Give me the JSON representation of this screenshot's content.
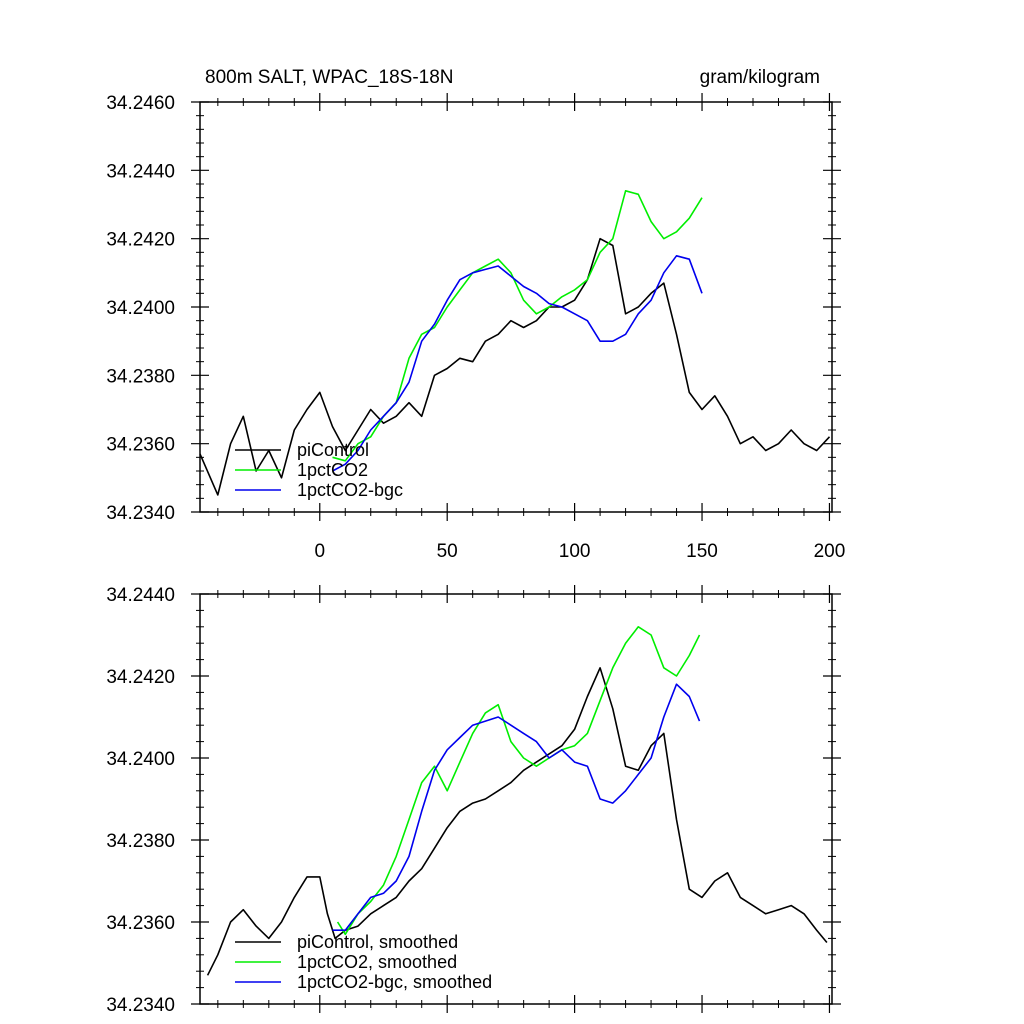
{
  "title_left": "800m SALT, WPAC_18S-18N",
  "title_right": "gram/kilogram",
  "chart_data": [
    {
      "type": "line",
      "title": "800m SALT, WPAC_18S-18N",
      "units": "gram/kilogram",
      "xlim": [
        -47,
        201
      ],
      "ylim": [
        34.234,
        34.246
      ],
      "x_ticks": [
        0,
        50,
        100,
        150,
        200
      ],
      "x_tick_labels": [
        "0",
        "50",
        "100",
        "150",
        "200"
      ],
      "y_ticks": [
        34.234,
        34.236,
        34.238,
        34.24,
        34.242,
        34.244,
        34.246
      ],
      "y_tick_labels": [
        "34.2340",
        "34.2360",
        "34.2380",
        "34.2400",
        "34.2420",
        "34.2440",
        "34.2460"
      ],
      "legend_position": "bottom-left",
      "series": [
        {
          "name": "piControl",
          "color": "#000000",
          "x": [
            -47,
            -40,
            -35,
            -30,
            -25,
            -20,
            -15,
            -10,
            -5,
            0,
            5,
            10,
            15,
            20,
            25,
            30,
            35,
            40,
            45,
            50,
            55,
            60,
            65,
            70,
            75,
            80,
            85,
            90,
            95,
            100,
            105,
            110,
            115,
            120,
            125,
            130,
            135,
            140,
            145,
            150,
            155,
            160,
            165,
            170,
            175,
            180,
            185,
            190,
            195,
            200
          ],
          "y": [
            34.2357,
            34.2345,
            34.236,
            34.2368,
            34.2352,
            34.2358,
            34.235,
            34.2364,
            34.237,
            34.2375,
            34.2365,
            34.2358,
            34.2364,
            34.237,
            34.2366,
            34.2368,
            34.2372,
            34.2368,
            34.238,
            34.2382,
            34.2385,
            34.2384,
            34.239,
            34.2392,
            34.2396,
            34.2394,
            34.2396,
            34.24,
            34.24,
            34.2402,
            34.2408,
            34.242,
            34.2418,
            34.2398,
            34.24,
            34.2404,
            34.2407,
            34.2392,
            34.2375,
            34.237,
            34.2374,
            34.2368,
            34.236,
            34.2362,
            34.2358,
            34.236,
            34.2364,
            34.236,
            34.2358,
            34.2362
          ]
        },
        {
          "name": "1pctCO2",
          "color": "#00ee00",
          "x": [
            5,
            10,
            15,
            20,
            25,
            30,
            35,
            40,
            45,
            50,
            55,
            60,
            65,
            70,
            75,
            80,
            85,
            90,
            95,
            100,
            105,
            110,
            115,
            120,
            125,
            130,
            135,
            140,
            145,
            150
          ],
          "y": [
            34.2356,
            34.2355,
            34.236,
            34.2362,
            34.2368,
            34.2372,
            34.2385,
            34.2392,
            34.2394,
            34.24,
            34.2405,
            34.241,
            34.2412,
            34.2414,
            34.241,
            34.2402,
            34.2398,
            34.24,
            34.2403,
            34.2405,
            34.2408,
            34.2416,
            34.242,
            34.2434,
            34.2433,
            34.2425,
            34.242,
            34.2422,
            34.2426,
            34.2432
          ]
        },
        {
          "name": "1pctCO2-bgc",
          "color": "#0000ee",
          "x": [
            5,
            10,
            15,
            20,
            25,
            30,
            35,
            40,
            45,
            50,
            55,
            60,
            65,
            70,
            75,
            80,
            85,
            90,
            95,
            100,
            105,
            110,
            115,
            120,
            125,
            130,
            135,
            140,
            145,
            150
          ],
          "y": [
            34.2352,
            34.2354,
            34.2358,
            34.2364,
            34.2368,
            34.2372,
            34.2378,
            34.239,
            34.2395,
            34.2402,
            34.2408,
            34.241,
            34.2411,
            34.2412,
            34.2409,
            34.2406,
            34.2404,
            34.2401,
            34.24,
            34.2398,
            34.2396,
            34.239,
            34.239,
            34.2392,
            34.2398,
            34.2402,
            34.241,
            34.2415,
            34.2414,
            34.2404
          ]
        }
      ]
    },
    {
      "type": "line",
      "xlim": [
        -47,
        201
      ],
      "ylim": [
        34.234,
        34.244
      ],
      "y_ticks": [
        34.234,
        34.236,
        34.238,
        34.24,
        34.242,
        34.244
      ],
      "y_tick_labels": [
        "34.2340",
        "34.2360",
        "34.2380",
        "34.2400",
        "34.2420",
        "34.2440"
      ],
      "legend_position": "bottom-left",
      "series": [
        {
          "name": "piControl, smoothed",
          "color": "#000000",
          "x": [
            -44,
            -40,
            -35,
            -30,
            -25,
            -20,
            -15,
            -10,
            -5,
            0,
            3,
            6,
            10,
            15,
            20,
            25,
            30,
            35,
            40,
            45,
            50,
            55,
            60,
            65,
            70,
            75,
            80,
            85,
            90,
            95,
            100,
            105,
            110,
            115,
            120,
            125,
            130,
            135,
            140,
            145,
            150,
            155,
            160,
            165,
            170,
            175,
            180,
            185,
            190,
            195,
            199
          ],
          "y": [
            34.2347,
            34.2352,
            34.236,
            34.2363,
            34.2359,
            34.2356,
            34.236,
            34.2366,
            34.2371,
            34.2371,
            34.2362,
            34.2356,
            34.2358,
            34.2359,
            34.2362,
            34.2364,
            34.2366,
            34.237,
            34.2373,
            34.2378,
            34.2383,
            34.2387,
            34.2389,
            34.239,
            34.2392,
            34.2394,
            34.2397,
            34.2399,
            34.2401,
            34.2403,
            34.2407,
            34.2415,
            34.2422,
            34.2412,
            34.2398,
            34.2397,
            34.2403,
            34.2406,
            34.2385,
            34.2368,
            34.2366,
            34.237,
            34.2372,
            34.2366,
            34.2364,
            34.2362,
            34.2363,
            34.2364,
            34.2362,
            34.2358,
            34.2355
          ]
        },
        {
          "name": "1pctCO2, smoothed",
          "color": "#00ee00",
          "x": [
            7,
            10,
            15,
            20,
            25,
            30,
            35,
            40,
            45,
            50,
            55,
            60,
            65,
            70,
            75,
            80,
            85,
            90,
            95,
            100,
            105,
            110,
            115,
            120,
            125,
            130,
            135,
            140,
            145,
            149
          ],
          "y": [
            34.236,
            34.2357,
            34.2362,
            34.2365,
            34.2369,
            34.2376,
            34.2385,
            34.2394,
            34.2398,
            34.2392,
            34.2399,
            34.2406,
            34.2411,
            34.2413,
            34.2404,
            34.24,
            34.2398,
            34.24,
            34.2402,
            34.2403,
            34.2406,
            34.2414,
            34.2422,
            34.2428,
            34.2432,
            34.243,
            34.2422,
            34.242,
            34.2425,
            34.243
          ]
        },
        {
          "name": "1pctCO2-bgc, smoothed",
          "color": "#0000ee",
          "x": [
            5,
            10,
            15,
            20,
            25,
            30,
            35,
            40,
            45,
            50,
            55,
            60,
            65,
            70,
            75,
            80,
            85,
            90,
            95,
            100,
            105,
            110,
            115,
            120,
            125,
            130,
            135,
            140,
            145,
            149
          ],
          "y": [
            34.2358,
            34.2358,
            34.2362,
            34.2366,
            34.2367,
            34.237,
            34.2376,
            34.2387,
            34.2397,
            34.2402,
            34.2405,
            34.2408,
            34.2409,
            34.241,
            34.2408,
            34.2406,
            34.2404,
            34.24,
            34.2402,
            34.2399,
            34.2398,
            34.239,
            34.2389,
            34.2392,
            34.2396,
            34.24,
            34.241,
            34.2418,
            34.2415,
            34.2409
          ]
        }
      ]
    }
  ]
}
